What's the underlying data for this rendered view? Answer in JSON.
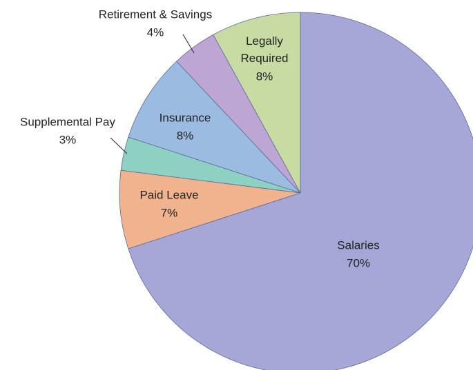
{
  "chart_data": {
    "type": "pie",
    "categories": [
      "Salaries",
      "Paid Leave",
      "Supplemental Pay",
      "Insurance",
      "Retirement & Savings",
      "Legally Required"
    ],
    "values": [
      70,
      7,
      3,
      8,
      4,
      8
    ],
    "value_labels": [
      "70%",
      "7%",
      "3%",
      "8%",
      "4%",
      "8%"
    ],
    "colors": [
      "#a6a7d6",
      "#f0b38d",
      "#8ed0c2",
      "#9cbbe1",
      "#bea6d4",
      "#c8dba2"
    ]
  }
}
